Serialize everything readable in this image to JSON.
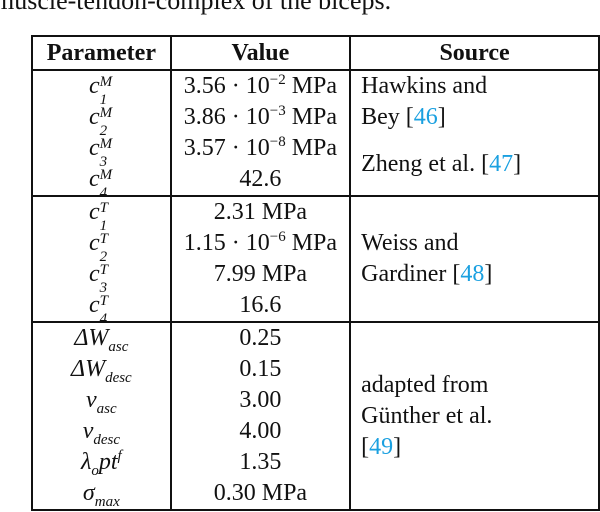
{
  "caption": "muscle-tendon-complex of the biceps.",
  "headers": [
    "Parameter",
    "Value",
    "Source"
  ],
  "groups": [
    {
      "rows": [
        {
          "base": "c",
          "sup": "M",
          "sub": "1",
          "value": "3.56 · 10",
          "exp": "−2",
          "unit": " MPa"
        },
        {
          "base": "c",
          "sup": "M",
          "sub": "2",
          "value": "3.86 · 10",
          "exp": "−3",
          "unit": " MPa"
        }
      ],
      "source": "Hawkins and Bey [",
      "cite": "46",
      "close": "]"
    },
    {
      "rows": [
        {
          "base": "c",
          "sup": "M",
          "sub": "3",
          "value": "3.57 · 10",
          "exp": "−8",
          "unit": " MPa"
        },
        {
          "base": "c",
          "sup": "M",
          "sub": "4",
          "value": "42.6"
        }
      ],
      "source": "Zheng et al. [",
      "cite": "47",
      "close": "]"
    },
    {
      "rows": [
        {
          "base": "c",
          "sup": "T",
          "sub": "1",
          "value": "2.31 MPa"
        },
        {
          "base": "c",
          "sup": "T",
          "sub": "2",
          "value": "1.15 · 10",
          "exp": "−6",
          "unit": " MPa"
        },
        {
          "base": "c",
          "sup": "T",
          "sub": "3",
          "value": "7.99 MPa"
        },
        {
          "base": "c",
          "sup": "T",
          "sub": "4",
          "value": "16.6"
        }
      ],
      "source": "Weiss and Gardiner [",
      "cite": "48",
      "close": "]"
    },
    {
      "rows": [
        {
          "base": "ΔW",
          "sub": "asc",
          "value": "0.25"
        },
        {
          "base": "ΔW",
          "sub": "desc",
          "value": "0.15"
        },
        {
          "base": "ν",
          "sub": "asc",
          "value": "3.00"
        },
        {
          "base": "ν",
          "sub": "desc",
          "value": "4.00"
        },
        {
          "base": "λ",
          "sub": "o",
          "tail": "pt",
          "sup": "f",
          "value": "1.35"
        },
        {
          "base": "σ",
          "sub": "max",
          "value": "0.30 MPa"
        }
      ],
      "source": "adapted from Günther et al. [",
      "cite": "49",
      "close": "]"
    }
  ]
}
